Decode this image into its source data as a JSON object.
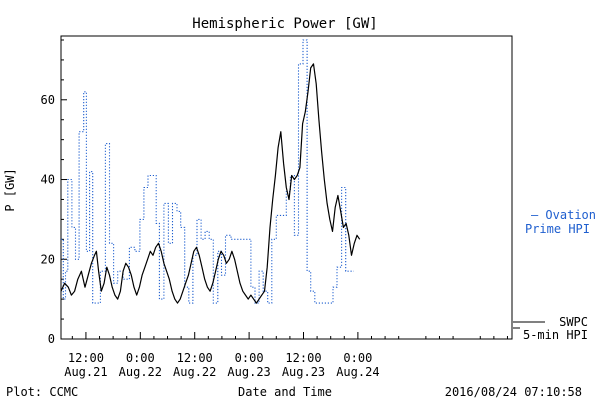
{
  "chart_data": {
    "type": "line",
    "title": "Hemispheric Power [GW]",
    "ylabel": "P [GW]",
    "xlabel": "Date and Time",
    "ylim": [
      0,
      76
    ],
    "yticks": [
      0,
      20,
      40,
      60
    ],
    "x_unit": "hours since 2016-08-20 00:00 UTC",
    "xlim": [
      6.5,
      106
    ],
    "xticks": [
      {
        "x": 12,
        "label1": "12:00",
        "label2": "Aug.21"
      },
      {
        "x": 24,
        "label1": "0:00",
        "label2": "Aug.22"
      },
      {
        "x": 36,
        "label1": "12:00",
        "label2": "Aug.22"
      },
      {
        "x": 48,
        "label1": "0:00",
        "label2": "Aug.23"
      },
      {
        "x": 60,
        "label1": "12:00",
        "label2": "Aug.23"
      },
      {
        "x": 72,
        "label1": "0:00",
        "label2": "Aug.24"
      }
    ],
    "series": [
      {
        "name": "Ovation Prime HPI",
        "legend_lines": [
          "– Ovation",
          "Prime HPI"
        ],
        "style": "step-dotted",
        "color": "#1f5fcf",
        "points": [
          [
            6.5,
            25
          ],
          [
            7.0,
            10
          ],
          [
            7.5,
            17
          ],
          [
            8.0,
            40
          ],
          [
            8.9,
            28
          ],
          [
            9.7,
            20
          ],
          [
            10.5,
            52
          ],
          [
            11.5,
            62
          ],
          [
            12.1,
            22
          ],
          [
            12.8,
            42
          ],
          [
            13.5,
            9
          ],
          [
            15.2,
            17
          ],
          [
            16.3,
            49
          ],
          [
            17.2,
            24
          ],
          [
            18.1,
            14
          ],
          [
            19.0,
            17
          ],
          [
            20.2,
            15
          ],
          [
            21.6,
            23
          ],
          [
            22.8,
            22
          ],
          [
            23.9,
            30
          ],
          [
            24.8,
            38
          ],
          [
            25.7,
            41
          ],
          [
            27.5,
            29
          ],
          [
            28.2,
            10
          ],
          [
            29.2,
            34
          ],
          [
            30.2,
            24
          ],
          [
            31.1,
            34
          ],
          [
            32.1,
            32
          ],
          [
            32.9,
            28
          ],
          [
            33.8,
            13
          ],
          [
            34.7,
            9
          ],
          [
            35.6,
            21
          ],
          [
            36.5,
            30
          ],
          [
            37.4,
            25
          ],
          [
            38.3,
            27
          ],
          [
            39.2,
            25
          ],
          [
            40.1,
            9
          ],
          [
            41.1,
            22
          ],
          [
            41.9,
            16
          ],
          [
            42.8,
            26
          ],
          [
            44.0,
            25
          ],
          [
            48.4,
            13
          ],
          [
            49.3,
            9
          ],
          [
            50.2,
            17
          ],
          [
            51.1,
            12
          ],
          [
            52.1,
            9
          ],
          [
            53.0,
            25
          ],
          [
            54.0,
            31
          ],
          [
            56.2,
            37
          ],
          [
            57.1,
            41
          ],
          [
            58.0,
            26
          ],
          [
            58.9,
            69
          ],
          [
            59.9,
            75
          ],
          [
            60.8,
            17
          ],
          [
            61.6,
            12
          ],
          [
            62.5,
            9
          ],
          [
            66.5,
            13
          ],
          [
            67.4,
            18
          ],
          [
            68.4,
            38
          ],
          [
            69.3,
            17
          ],
          [
            70.0,
            17
          ],
          [
            70.6,
            17
          ]
        ]
      },
      {
        "name": "SWPC 5-min HPI",
        "legend_lines": [
          "SWPC",
          "5-min HPI"
        ],
        "style": "solid",
        "color": "#000000",
        "points": [
          [
            6.5,
            12
          ],
          [
            7.3,
            14
          ],
          [
            8.1,
            13
          ],
          [
            8.8,
            11
          ],
          [
            9.5,
            12
          ],
          [
            10.2,
            15
          ],
          [
            11.0,
            17
          ],
          [
            11.8,
            13
          ],
          [
            12.5,
            16
          ],
          [
            13.2,
            19
          ],
          [
            13.9,
            21
          ],
          [
            14.3,
            22
          ],
          [
            14.8,
            17
          ],
          [
            15.4,
            12
          ],
          [
            16.0,
            14
          ],
          [
            16.6,
            18
          ],
          [
            17.2,
            16
          ],
          [
            17.8,
            13
          ],
          [
            18.4,
            11
          ],
          [
            19.0,
            10
          ],
          [
            19.6,
            12
          ],
          [
            20.2,
            17
          ],
          [
            20.8,
            19
          ],
          [
            21.4,
            18
          ],
          [
            22.0,
            16
          ],
          [
            22.6,
            13
          ],
          [
            23.2,
            11
          ],
          [
            23.8,
            13
          ],
          [
            24.4,
            16
          ],
          [
            25.0,
            18
          ],
          [
            25.6,
            20
          ],
          [
            26.2,
            22
          ],
          [
            26.8,
            21
          ],
          [
            27.4,
            23
          ],
          [
            28.0,
            24
          ],
          [
            28.6,
            22
          ],
          [
            29.2,
            19
          ],
          [
            29.8,
            17
          ],
          [
            30.4,
            15
          ],
          [
            31.0,
            12
          ],
          [
            31.6,
            10
          ],
          [
            32.2,
            9
          ],
          [
            32.8,
            10
          ],
          [
            33.4,
            12
          ],
          [
            34.0,
            14
          ],
          [
            34.6,
            16
          ],
          [
            35.2,
            19
          ],
          [
            35.8,
            22
          ],
          [
            36.4,
            23
          ],
          [
            37.0,
            21
          ],
          [
            37.6,
            18
          ],
          [
            38.2,
            15
          ],
          [
            38.8,
            13
          ],
          [
            39.4,
            12
          ],
          [
            40.0,
            14
          ],
          [
            40.6,
            17
          ],
          [
            41.2,
            20
          ],
          [
            41.8,
            22
          ],
          [
            42.4,
            21
          ],
          [
            43.0,
            19
          ],
          [
            43.6,
            20
          ],
          [
            44.2,
            22
          ],
          [
            44.8,
            20
          ],
          [
            45.4,
            17
          ],
          [
            46.0,
            14
          ],
          [
            46.6,
            12
          ],
          [
            47.2,
            11
          ],
          [
            47.8,
            10
          ],
          [
            48.4,
            11
          ],
          [
            49.0,
            10
          ],
          [
            49.6,
            9
          ],
          [
            50.2,
            10
          ],
          [
            50.8,
            11
          ],
          [
            51.4,
            12
          ],
          [
            52.0,
            18
          ],
          [
            52.6,
            28
          ],
          [
            53.2,
            35
          ],
          [
            53.8,
            41
          ],
          [
            54.4,
            48
          ],
          [
            55.0,
            52
          ],
          [
            55.6,
            44
          ],
          [
            56.2,
            38
          ],
          [
            56.8,
            35
          ],
          [
            57.4,
            41
          ],
          [
            58.0,
            40
          ],
          [
            58.6,
            41
          ],
          [
            59.2,
            43
          ],
          [
            59.8,
            54
          ],
          [
            60.4,
            57
          ],
          [
            61.0,
            62
          ],
          [
            61.6,
            68
          ],
          [
            62.2,
            69
          ],
          [
            62.8,
            64
          ],
          [
            63.4,
            55
          ],
          [
            64.0,
            47
          ],
          [
            64.6,
            40
          ],
          [
            65.2,
            34
          ],
          [
            65.8,
            30
          ],
          [
            66.4,
            27
          ],
          [
            67.0,
            33
          ],
          [
            67.6,
            36
          ],
          [
            68.2,
            32
          ],
          [
            68.8,
            28
          ],
          [
            69.4,
            29
          ],
          [
            70.0,
            26
          ],
          [
            70.6,
            21
          ],
          [
            71.2,
            24
          ],
          [
            71.8,
            26
          ],
          [
            72.4,
            25
          ]
        ]
      }
    ],
    "footer_left": "Plot: CCMC",
    "footer_right": "2016/08/24 07:10:58"
  }
}
